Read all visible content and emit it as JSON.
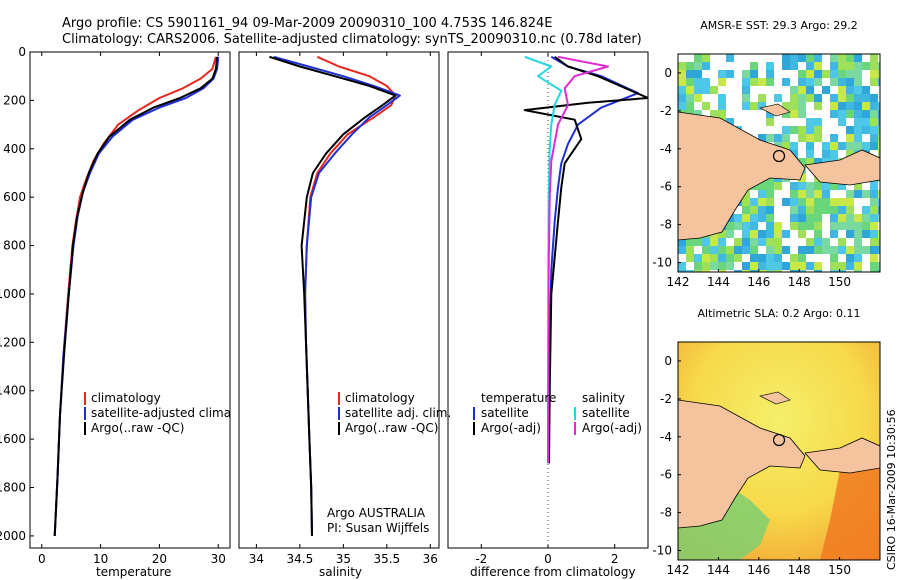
{
  "title": {
    "line1": "Argo profile: CS 5901161_94 09-Mar-2009 20090310_100 4.753S 146.824E",
    "line2": "Climatology: CARS2006. Satellite-adjusted climatology: synTS_20090310.nc (0.78d later)"
  },
  "credit": {
    "agency": "Argo AUSTRALIA",
    "pi": "PI: Susan Wijffels",
    "stamp": "CSIRO 16-Mar-2009 10:30:56"
  },
  "colors": {
    "climatology": "#e8271e",
    "satellite": "#1f2fd6",
    "argo": "#000000",
    "sat_salinity": "#22d8e0",
    "argo_salinity": "#e02ad8",
    "land": "#f5c39d"
  },
  "chart_data": [
    {
      "id": "temperature",
      "type": "line",
      "xlabel": "temperature",
      "ylabel": "",
      "xlim": [
        -2,
        32
      ],
      "ylim": [
        2050,
        0
      ],
      "xticks": [
        0,
        10,
        20,
        30
      ],
      "yticks": [
        0,
        200,
        400,
        600,
        800,
        1000,
        1200,
        1400,
        1600,
        1800,
        2000
      ],
      "legend": [
        "climatology",
        "satellite-adjusted climatology",
        "Argo(..raw -QC)"
      ],
      "legend_position": "lower-right",
      "series": [
        {
          "name": "climatology",
          "color": "#e8271e",
          "x": [
            29.6,
            29.0,
            27.0,
            24.0,
            20.0,
            16.5,
            13.0,
            10.5,
            8.8,
            7.5,
            6.5,
            5.8,
            5.2,
            4.5,
            3.7,
            3.1,
            2.7,
            2.3,
            2.2
          ],
          "y": [
            20,
            70,
            110,
            150,
            190,
            240,
            300,
            380,
            450,
            530,
            600,
            700,
            800,
            1000,
            1250,
            1500,
            1750,
            1950,
            2000
          ]
        },
        {
          "name": "satellite-adjusted climatology",
          "color": "#1f2fd6",
          "x": [
            30.0,
            29.8,
            29.2,
            27.5,
            24.5,
            20.0,
            15.5,
            12.0,
            9.7,
            8.2,
            7.0,
            6.1,
            5.4,
            4.6,
            3.7,
            3.1,
            2.7,
            2.3,
            2.2
          ],
          "y": [
            20,
            70,
            110,
            150,
            190,
            230,
            280,
            350,
            420,
            500,
            580,
            680,
            800,
            1000,
            1250,
            1500,
            1750,
            1950,
            2000
          ]
        },
        {
          "name": "Argo(..raw -QC)",
          "color": "#000000",
          "x": [
            29.8,
            29.6,
            29.0,
            27.0,
            23.5,
            19.0,
            15.0,
            11.5,
            9.5,
            8.0,
            7.0,
            6.0,
            5.3,
            4.6,
            3.8,
            3.1,
            2.7,
            2.3,
            2.2
          ],
          "y": [
            20,
            70,
            110,
            150,
            190,
            230,
            280,
            350,
            420,
            500,
            580,
            680,
            800,
            1000,
            1250,
            1500,
            1750,
            1950,
            2000
          ]
        }
      ]
    },
    {
      "id": "salinity",
      "type": "line",
      "xlabel": "salinity",
      "ylabel": "",
      "xlim": [
        33.8,
        36.1
      ],
      "ylim": [
        2050,
        0
      ],
      "xticks": [
        34,
        34.5,
        35,
        35.5,
        36
      ],
      "yticks": [],
      "legend": [
        "climatology",
        "satellite adj. clim.",
        "Argo(..raw -QC)"
      ],
      "legend_position": "lower-right",
      "series": [
        {
          "name": "climatology",
          "color": "#e8271e",
          "x": [
            34.7,
            34.95,
            35.3,
            35.5,
            35.6,
            35.55,
            35.35,
            35.05,
            34.85,
            34.7,
            34.62,
            34.58,
            34.56,
            34.57,
            34.59,
            34.61,
            34.63,
            34.64
          ],
          "y": [
            20,
            60,
            100,
            140,
            180,
            220,
            270,
            340,
            420,
            500,
            600,
            800,
            1000,
            1200,
            1400,
            1600,
            1800,
            2000
          ]
        },
        {
          "name": "satellite adj. clim.",
          "color": "#1f2fd6",
          "x": [
            34.2,
            34.6,
            35.0,
            35.35,
            35.65,
            35.5,
            35.3,
            35.1,
            34.9,
            34.72,
            34.63,
            34.58,
            34.56,
            34.57,
            34.59,
            34.61,
            34.63,
            34.64
          ],
          "y": [
            20,
            60,
            100,
            140,
            180,
            220,
            270,
            340,
            420,
            500,
            600,
            800,
            1000,
            1200,
            1400,
            1600,
            1800,
            2000
          ]
        },
        {
          "name": "Argo(..raw -QC)",
          "color": "#000000",
          "x": [
            34.15,
            34.5,
            34.9,
            35.3,
            35.6,
            35.45,
            35.25,
            35.0,
            34.8,
            34.65,
            34.58,
            34.52,
            34.55,
            34.57,
            34.59,
            34.61,
            34.63,
            34.64
          ],
          "y": [
            20,
            60,
            100,
            140,
            180,
            220,
            270,
            340,
            420,
            500,
            600,
            800,
            1000,
            1200,
            1400,
            1600,
            1800,
            2000
          ]
        }
      ]
    },
    {
      "id": "difference",
      "type": "line",
      "xlabel": "difference from climatology",
      "ylabel": "",
      "xlim": [
        -3,
        3
      ],
      "ylim": [
        2050,
        0
      ],
      "xticks": [
        -2,
        0,
        2
      ],
      "yticks": [],
      "legend_groups": [
        {
          "title": "temperature",
          "items": [
            "satellite",
            "Argo(-adj)"
          ]
        },
        {
          "title": "salinity",
          "items": [
            "satellite",
            "Argo(-adj)"
          ]
        }
      ],
      "legend_position": "lower",
      "series": [
        {
          "name": "temperature satellite",
          "color": "#1f2fd6",
          "x": [
            0.1,
            0.6,
            1.6,
            2.7,
            1.6,
            0.9,
            0.6,
            0.4,
            0.3,
            0.2,
            0.1,
            0.05,
            0.03,
            0.02
          ],
          "y": [
            20,
            60,
            100,
            170,
            230,
            300,
            380,
            460,
            560,
            700,
            900,
            1200,
            1500,
            1700
          ]
        },
        {
          "name": "temperature Argo(-adj)",
          "color": "#000000",
          "x": [
            0.2,
            0.6,
            1.5,
            3.0,
            1.2,
            -0.7,
            0.8,
            1.0,
            0.5,
            0.4,
            0.3,
            0.1,
            0.05,
            0.03
          ],
          "y": [
            20,
            60,
            100,
            190,
            210,
            240,
            280,
            360,
            460,
            560,
            700,
            1000,
            1400,
            1700
          ]
        },
        {
          "name": "salinity satellite",
          "color": "#22d8e0",
          "x": [
            -0.7,
            0.1,
            -0.3,
            0.4,
            0.2,
            0.1,
            0.05,
            0.02,
            0.01,
            0.0
          ],
          "y": [
            20,
            60,
            100,
            160,
            220,
            300,
            400,
            600,
            900,
            1700
          ]
        },
        {
          "name": "salinity Argo(-adj)",
          "color": "#e02ad8",
          "x": [
            0.3,
            1.8,
            0.8,
            0.5,
            0.6,
            0.3,
            0.1,
            0.05,
            0.02,
            0.0
          ],
          "y": [
            20,
            60,
            100,
            150,
            220,
            300,
            450,
            600,
            900,
            1700
          ]
        }
      ]
    },
    {
      "id": "sst-map",
      "type": "heatmap",
      "title": "AMSR-E SST: 29.3  Argo: 29.2",
      "xlim": [
        142,
        152
      ],
      "ylim": [
        -10.5,
        1
      ],
      "xticks": [
        142,
        144,
        146,
        148,
        150
      ],
      "yticks": [
        0,
        -2,
        -4,
        -6,
        -8,
        -10
      ],
      "argo_location": [
        146.824,
        -4.753
      ]
    },
    {
      "id": "sla-map",
      "type": "heatmap",
      "title": "Altimetric SLA: 0.2  Argo: 0.11",
      "xlim": [
        142,
        152
      ],
      "ylim": [
        -10.5,
        1
      ],
      "xticks": [
        142,
        144,
        146,
        148,
        150
      ],
      "yticks": [
        0,
        -2,
        -4,
        -6,
        -8,
        -10
      ],
      "argo_location": [
        146.824,
        -4.753
      ]
    }
  ]
}
